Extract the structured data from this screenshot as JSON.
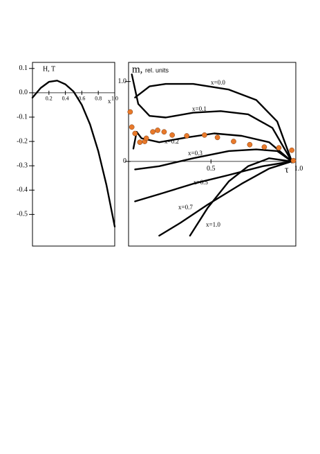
{
  "chart_data": [
    {
      "type": "line",
      "title": "H, T",
      "x_label": "x",
      "color": "#000000",
      "x": [
        0,
        0.1,
        0.2,
        0.3,
        0.4,
        0.5,
        0.6,
        0.7,
        0.8,
        0.9,
        1.0
      ],
      "values": [
        -0.02,
        0.02,
        0.045,
        0.05,
        0.035,
        0.005,
        -0.05,
        -0.13,
        -0.24,
        -0.38,
        -0.55
      ],
      "xlim": [
        0,
        1
      ],
      "ylim": [
        -0.63,
        0.125
      ],
      "xticks": [
        0.2,
        0.4,
        0.6,
        0.8,
        {
          "value": 1,
          "label": "1.0"
        }
      ],
      "yticks": [
        0.1,
        {
          "value": 0,
          "label": "0.0"
        },
        -0.1,
        -0.2,
        -0.3,
        -0.4,
        -0.5
      ]
    },
    {
      "type": "line",
      "title": "m,",
      "subtitle": "rel. units",
      "x_label": "τ",
      "xlim": [
        -0.01,
        1.025
      ],
      "ylim": [
        -1.06,
        1.24
      ],
      "xticks": [
        0.5,
        {
          "value": 1,
          "label": "1.0"
        }
      ],
      "yticks": [
        {
          "value": 1,
          "label": "1.0"
        },
        0
      ],
      "series": [
        {
          "name": "x=0.0",
          "color": "#000000",
          "x": [
            0.03,
            0.12,
            0.22,
            0.39,
            0.61,
            0.78,
            0.91,
            1.0
          ],
          "values": [
            0.8,
            0.94,
            0.97,
            0.97,
            0.9,
            0.77,
            0.5,
            0
          ]
        },
        {
          "name": "x=0.1",
          "color": "#000000",
          "x": [
            0.01,
            0.05,
            0.12,
            0.22,
            0.39,
            0.56,
            0.73,
            0.88,
            1.0
          ],
          "values": [
            1.09,
            0.72,
            0.57,
            0.55,
            0.61,
            0.63,
            0.59,
            0.42,
            0
          ]
        },
        {
          "name": "x=0.2",
          "color": "#000000",
          "x": [
            0.02,
            0.04,
            0.07,
            0.18,
            0.35,
            0.52,
            0.69,
            0.86,
            1.0
          ],
          "values": [
            0.16,
            0.37,
            0.29,
            0.24,
            0.3,
            0.35,
            0.32,
            0.24,
            0
          ]
        },
        {
          "name": "x=0.3",
          "color": "#000000",
          "x": [
            0.03,
            0.18,
            0.39,
            0.61,
            0.78,
            0.91,
            1.0
          ],
          "values": [
            -0.1,
            -0.06,
            0.04,
            0.13,
            0.15,
            0.13,
            0
          ]
        },
        {
          "name": "x=0.5",
          "color": "#000000",
          "x": [
            0.03,
            0.18,
            0.39,
            0.61,
            0.82,
            1.0
          ],
          "values": [
            -0.5,
            -0.41,
            -0.28,
            -0.17,
            -0.06,
            0
          ]
        },
        {
          "name": "x=0.7",
          "color": "#000000",
          "x": [
            0.18,
            0.31,
            0.48,
            0.69,
            0.86,
            1.0
          ],
          "values": [
            -0.93,
            -0.77,
            -0.54,
            -0.28,
            -0.09,
            0
          ]
        },
        {
          "name": "x=1.0",
          "color": "#000000",
          "x": [
            0.37,
            0.48,
            0.61,
            0.73,
            0.86,
            1.0
          ],
          "values": [
            -0.93,
            -0.58,
            -0.25,
            -0.06,
            0.04,
            0
          ]
        }
      ],
      "points": {
        "color": "#e8792a",
        "x": [
          0,
          0.01,
          0.03,
          0.06,
          0.09,
          0.1,
          0.14,
          0.17,
          0.21,
          0.26,
          0.35,
          0.46,
          0.54,
          0.64,
          0.74,
          0.83,
          0.92,
          1.0,
          1.01
        ],
        "values": [
          0.62,
          0.43,
          0.35,
          0.24,
          0.25,
          0.29,
          0.37,
          0.39,
          0.37,
          0.33,
          0.32,
          0.33,
          0.3,
          0.25,
          0.21,
          0.18,
          0.17,
          0.14,
          0.01
        ]
      }
    }
  ]
}
